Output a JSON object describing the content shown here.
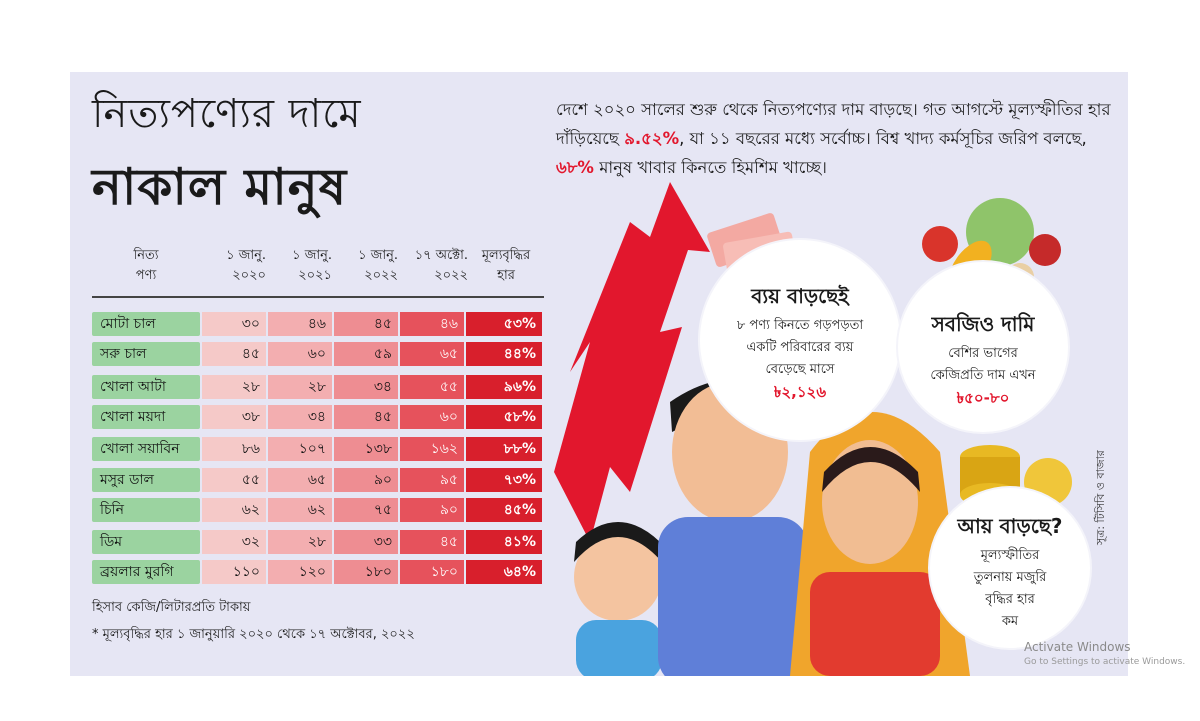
{
  "title_line1": "নিত্যপণ্যের দামে",
  "title_line2": "নাকাল মানুষ",
  "intro": {
    "part1": "দেশে ২০২০ সালের শুরু থেকে নিত্যপণ্যের দাম বাড়ছে। গত আগস্টে মূল্যস্ফীতির হার দাঁড়িয়েছে ",
    "hl1": "৯.৫২%",
    "part2": ", যা ১১ বছরের মধ্যে সর্বোচ্চ। বিশ্ব খাদ্য কর্মসূচির জরিপ বলছে, ",
    "hl2": "৬৮%",
    "part3": " মানুষ খাবার কিনতে হিমশিম খাচ্ছে।"
  },
  "chart_data": {
    "type": "table",
    "headers": [
      {
        "l1": "নিত্য",
        "l2": "পণ্য"
      },
      {
        "l1": "১ জানু.",
        "l2": "২০২০"
      },
      {
        "l1": "১ জানু.",
        "l2": "২০২১"
      },
      {
        "l1": "১ জানু.",
        "l2": "২০২২"
      },
      {
        "l1": "১৭ অক্টো.",
        "l2": "২০২২"
      },
      {
        "l1": "মূল্যবৃদ্ধির",
        "l2": "হার"
      }
    ],
    "rows": [
      {
        "name": "মোটা চাল",
        "v2020": "৩০",
        "v2021": "৪৬",
        "v2022": "৪৫",
        "voct": "৪৬",
        "rate": "৫৩%"
      },
      {
        "name": "সরু চাল",
        "v2020": "৪৫",
        "v2021": "৬০",
        "v2022": "৫৯",
        "voct": "৬৫",
        "rate": "৪৪%"
      },
      {
        "name": "খোলা আটা",
        "v2020": "২৮",
        "v2021": "২৮",
        "v2022": "৩৪",
        "voct": "৫৫",
        "rate": "৯৬%"
      },
      {
        "name": "খোলা ময়দা",
        "v2020": "৩৮",
        "v2021": "৩৪",
        "v2022": "৪৫",
        "voct": "৬০",
        "rate": "৫৮%"
      },
      {
        "name": "খোলা সয়াবিন",
        "v2020": "৮৬",
        "v2021": "১০৭",
        "v2022": "১৩৮",
        "voct": "১৬২",
        "rate": "৮৮%"
      },
      {
        "name": "মসুর ডাল",
        "v2020": "৫৫",
        "v2021": "৬৫",
        "v2022": "৯০",
        "voct": "৯৫",
        "rate": "৭৩%"
      },
      {
        "name": "চিনি",
        "v2020": "৬২",
        "v2021": "৬২",
        "v2022": "৭৫",
        "voct": "৯০",
        "rate": "৪৫%"
      },
      {
        "name": "ডিম",
        "v2020": "৩২",
        "v2021": "২৮",
        "v2022": "৩৩",
        "voct": "৪৫",
        "rate": "৪১%"
      },
      {
        "name": "ব্রয়লার মুরগি",
        "v2020": "১১০",
        "v2021": "১২০",
        "v2022": "১৮০",
        "voct": "১৮০",
        "rate": "৬৪%"
      }
    ],
    "unit_note": "হিসাব কেজি/লিটারপ্রতি টাকায়",
    "footnote": "* মূল্যবৃদ্ধির হার ১ জানুয়ারি ২০২০ থেকে ১৭ অক্টোবর, ২০২২"
  },
  "bubbles": {
    "expense": {
      "title": "ব্যয় বাড়ছেই",
      "l1": "৮ পণ্য কিনতে গড়পড়তা",
      "l2": "একটি পরিবারের ব্যয়",
      "l3": "বেড়েছে মাসে",
      "value": "৳২,১২৬"
    },
    "vegetables": {
      "title": "সবজিও দামি",
      "l1": "বেশির ভাগের",
      "l2": "কেজিপ্রতি দাম এখন",
      "value": "৳৫০-৮০"
    },
    "income": {
      "title": "আয় বাড়ছে?",
      "l1": "মূল্যস্ফীতির",
      "l2": "তুলনায় মজুরি",
      "l3": "বৃদ্ধির হার",
      "l4": "কম"
    }
  },
  "source": "সূত্র: টিসিবি ও বাজার",
  "watermark": {
    "l1": "Activate Windows",
    "l2": "Go to Settings to activate Windows."
  },
  "colors": {
    "accent_red": "#e2172d",
    "name_green": "#9bd3a0",
    "panel_bg": "#e6e6f4"
  }
}
